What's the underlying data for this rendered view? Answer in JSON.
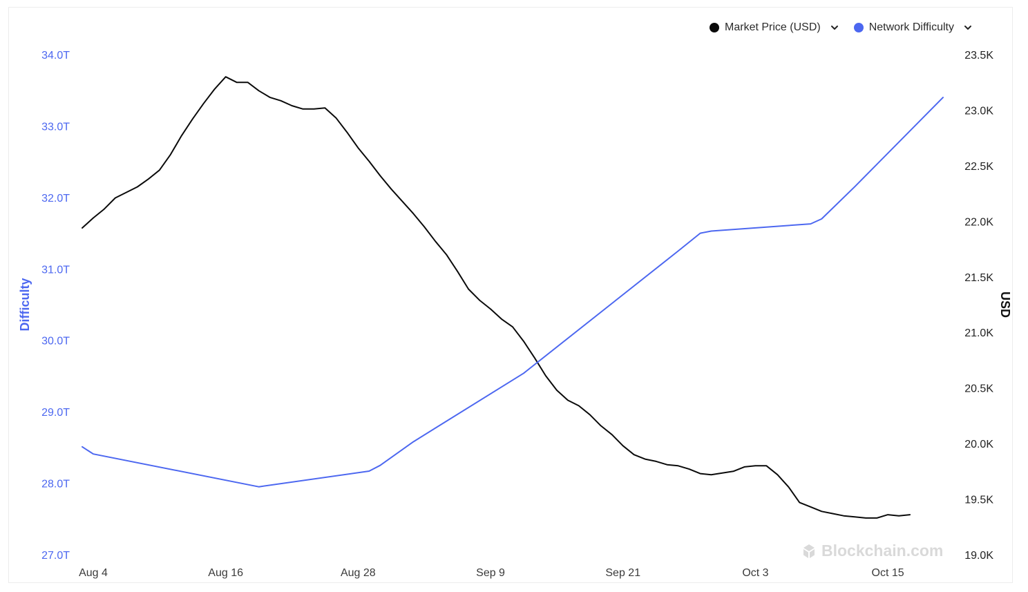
{
  "legend": {
    "items": [
      {
        "label": "Market Price (USD)",
        "color": "#0a0a0a",
        "icon": "chevron-down-icon"
      },
      {
        "label": "Network Difficulty",
        "color": "#4c67f0",
        "icon": "chevron-down-icon"
      }
    ]
  },
  "watermark": {
    "text": "Blockchain.com",
    "icon": "blockchain-logo-icon"
  },
  "chart_data": {
    "type": "line",
    "x_ticks": [
      "Aug 4",
      "Aug 16",
      "Aug 28",
      "Sep 9",
      "Sep 21",
      "Oct 3",
      "Oct 15"
    ],
    "left_axis": {
      "label": "Difficulty",
      "ticks": [
        "34.0T",
        "33.0T",
        "32.0T",
        "31.0T",
        "30.0T",
        "29.0T",
        "28.0T",
        "27.0T"
      ],
      "range": [
        27.0,
        34.0
      ],
      "unit": "T",
      "color": "#4c67f0"
    },
    "right_axis": {
      "label": "USD",
      "ticks": [
        "23.5K",
        "23.0K",
        "22.5K",
        "22.0K",
        "21.5K",
        "21.0K",
        "20.5K",
        "20.0K",
        "19.5K",
        "19.0K"
      ],
      "range": [
        19000,
        23500
      ],
      "color": "#222222"
    },
    "grid": false,
    "legend_position": "top-right",
    "series": [
      {
        "name": "Market Price (USD)",
        "axis": "right",
        "color": "#0a0a0a",
        "points": [
          [
            "2022-08-03",
            21940
          ],
          [
            "2022-08-04",
            22030
          ],
          [
            "2022-08-05",
            22110
          ],
          [
            "2022-08-06",
            22210
          ],
          [
            "2022-08-07",
            22260
          ],
          [
            "2022-08-08",
            22310
          ],
          [
            "2022-08-09",
            22380
          ],
          [
            "2022-08-10",
            22460
          ],
          [
            "2022-08-11",
            22600
          ],
          [
            "2022-08-12",
            22770
          ],
          [
            "2022-08-13",
            22920
          ],
          [
            "2022-08-14",
            23060
          ],
          [
            "2022-08-15",
            23190
          ],
          [
            "2022-08-16",
            23300
          ],
          [
            "2022-08-17",
            23250
          ],
          [
            "2022-08-18",
            23250
          ],
          [
            "2022-08-19",
            23175
          ],
          [
            "2022-08-20",
            23115
          ],
          [
            "2022-08-21",
            23085
          ],
          [
            "2022-08-22",
            23040
          ],
          [
            "2022-08-23",
            23010
          ],
          [
            "2022-08-24",
            23010
          ],
          [
            "2022-08-25",
            23020
          ],
          [
            "2022-08-26",
            22930
          ],
          [
            "2022-08-27",
            22800
          ],
          [
            "2022-08-28",
            22660
          ],
          [
            "2022-08-29",
            22540
          ],
          [
            "2022-08-30",
            22410
          ],
          [
            "2022-08-31",
            22290
          ],
          [
            "2022-09-01",
            22180
          ],
          [
            "2022-09-02",
            22070
          ],
          [
            "2022-09-03",
            21950
          ],
          [
            "2022-09-04",
            21820
          ],
          [
            "2022-09-05",
            21700
          ],
          [
            "2022-09-06",
            21550
          ],
          [
            "2022-09-07",
            21390
          ],
          [
            "2022-09-08",
            21290
          ],
          [
            "2022-09-09",
            21210
          ],
          [
            "2022-09-10",
            21120
          ],
          [
            "2022-09-11",
            21050
          ],
          [
            "2022-09-12",
            20920
          ],
          [
            "2022-09-13",
            20770
          ],
          [
            "2022-09-14",
            20610
          ],
          [
            "2022-09-15",
            20480
          ],
          [
            "2022-09-16",
            20390
          ],
          [
            "2022-09-17",
            20340
          ],
          [
            "2022-09-18",
            20260
          ],
          [
            "2022-09-19",
            20160
          ],
          [
            "2022-09-20",
            20080
          ],
          [
            "2022-09-21",
            19980
          ],
          [
            "2022-09-22",
            19900
          ],
          [
            "2022-09-23",
            19860
          ],
          [
            "2022-09-24",
            19840
          ],
          [
            "2022-09-25",
            19810
          ],
          [
            "2022-09-26",
            19800
          ],
          [
            "2022-09-27",
            19770
          ],
          [
            "2022-09-28",
            19730
          ],
          [
            "2022-09-29",
            19720
          ],
          [
            "2022-09-30",
            19735
          ],
          [
            "2022-10-01",
            19750
          ],
          [
            "2022-10-02",
            19790
          ],
          [
            "2022-10-03",
            19800
          ],
          [
            "2022-10-04",
            19800
          ],
          [
            "2022-10-05",
            19720
          ],
          [
            "2022-10-06",
            19610
          ],
          [
            "2022-10-07",
            19470
          ],
          [
            "2022-10-08",
            19430
          ],
          [
            "2022-10-09",
            19390
          ],
          [
            "2022-10-10",
            19370
          ],
          [
            "2022-10-11",
            19350
          ],
          [
            "2022-10-12",
            19340
          ],
          [
            "2022-10-13",
            19330
          ],
          [
            "2022-10-14",
            19330
          ],
          [
            "2022-10-15",
            19360
          ],
          [
            "2022-10-16",
            19350
          ],
          [
            "2022-10-17",
            19360
          ]
        ]
      },
      {
        "name": "Network Difficulty",
        "axis": "left",
        "color": "#4c67f0",
        "points": [
          [
            "2022-08-03",
            28.51
          ],
          [
            "2022-08-04",
            28.41
          ],
          [
            "2022-08-19",
            27.95
          ],
          [
            "2022-08-29",
            28.17
          ],
          [
            "2022-08-30",
            28.25
          ],
          [
            "2022-09-02",
            28.58
          ],
          [
            "2022-09-12",
            29.54
          ],
          [
            "2022-09-26",
            31.25
          ],
          [
            "2022-09-28",
            31.5
          ],
          [
            "2022-09-29",
            31.53
          ],
          [
            "2022-10-08",
            31.63
          ],
          [
            "2022-10-09",
            31.7
          ],
          [
            "2022-10-12",
            32.15
          ],
          [
            "2022-10-20",
            33.4
          ]
        ]
      }
    ]
  }
}
